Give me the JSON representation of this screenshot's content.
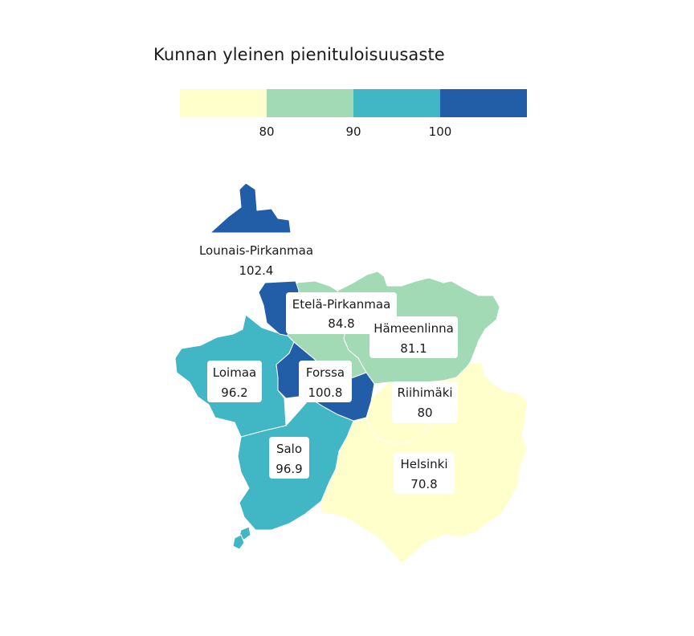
{
  "title": "Kunnan yleinen pienituloisuusaste",
  "legend": {
    "breaks": [
      80,
      90,
      100
    ],
    "tick_labels": [
      "80",
      "90",
      "100"
    ],
    "colors": [
      "#ffffcc",
      "#a1dab4",
      "#41b6c4",
      "#225ea8"
    ]
  },
  "regions": [
    {
      "id": "lounais-pirkanmaa",
      "name": "Lounais-Pirkanmaa",
      "value": 102.4,
      "value_label": "102.4",
      "color": "#225ea8"
    },
    {
      "id": "etela-pirkanmaa",
      "name": "Etelä-Pirkanmaa",
      "value": 84.8,
      "value_label": "84.8",
      "color": "#a1dab4"
    },
    {
      "id": "hameenlinna",
      "name": "Hämeenlinna",
      "value": 81.1,
      "value_label": "81.1",
      "color": "#a1dab4"
    },
    {
      "id": "loimaa",
      "name": "Loimaa",
      "value": 96.2,
      "value_label": "96.2",
      "color": "#41b6c4"
    },
    {
      "id": "forssa",
      "name": "Forssa",
      "value": 100.8,
      "value_label": "100.8",
      "color": "#225ea8"
    },
    {
      "id": "riihimaki",
      "name": "Riihimäki",
      "value": 80,
      "value_label": "80",
      "color": "#ffffcc"
    },
    {
      "id": "salo",
      "name": "Salo",
      "value": 96.9,
      "value_label": "96.9",
      "color": "#41b6c4"
    },
    {
      "id": "helsinki",
      "name": "Helsinki",
      "value": 70.8,
      "value_label": "70.8",
      "color": "#ffffcc"
    }
  ]
}
